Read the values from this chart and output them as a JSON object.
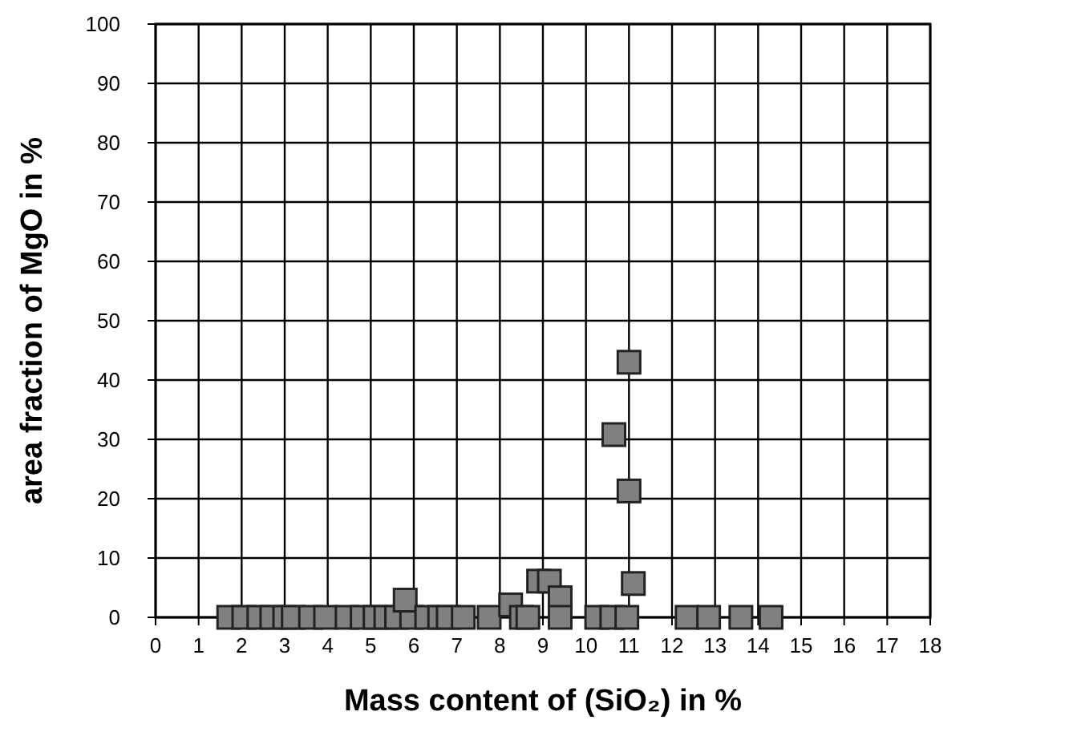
{
  "chart_data": {
    "type": "scatter",
    "xlabel": "Mass content of (SiO₂) in %",
    "ylabel": "area fraction of MgO in %",
    "x": [
      1.7,
      2.05,
      2.4,
      2.7,
      3.0,
      3.2,
      3.6,
      3.95,
      4.45,
      4.8,
      5.1,
      5.35,
      5.6,
      5.95,
      5.8,
      6.3,
      6.6,
      6.8,
      7.15,
      7.75,
      8.25,
      8.5,
      8.65,
      8.9,
      9.15,
      9.4,
      9.4,
      10.25,
      10.6,
      10.95,
      10.65,
      11.0,
      11.0,
      11.1,
      12.35,
      12.85,
      13.6,
      14.3
    ],
    "series": [
      {
        "color": "#808080",
        "values": [
          0,
          0,
          0,
          0,
          0,
          0,
          0,
          0,
          0,
          0,
          0,
          0,
          0,
          0,
          2.9,
          0,
          0,
          0,
          0,
          0,
          2.1,
          0,
          0,
          6.1,
          6.1,
          3.3,
          0,
          0,
          0,
          0,
          30.8,
          43,
          21.3,
          5.7,
          0,
          0,
          0,
          0
        ]
      }
    ],
    "xlim": [
      0,
      18
    ],
    "xticks": [
      0,
      1,
      2,
      3,
      4,
      5,
      6,
      7,
      8,
      9,
      10,
      11,
      12,
      13,
      14,
      15,
      16,
      17,
      18
    ],
    "ylim": [
      0,
      100
    ],
    "yticks": [
      0,
      10,
      20,
      30,
      40,
      50,
      60,
      70,
      80,
      90,
      100
    ],
    "grid": true,
    "marker": "square"
  }
}
